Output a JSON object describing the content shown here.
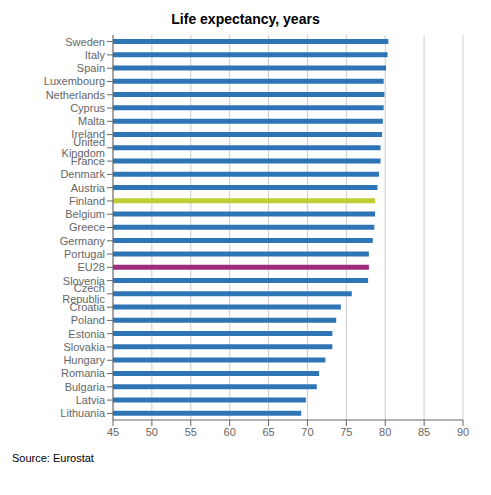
{
  "chart_data": {
    "type": "bar",
    "title": "Life expectancy, years",
    "annotations": [
      "Source: Eurostat"
    ],
    "orientation": "horizontal",
    "categories": [
      "Sweden",
      "Italy",
      "Spain",
      "Luxembourg",
      "Netherlands",
      "Cyprus",
      "Malta",
      "Ireland",
      "United Kingdom",
      "France",
      "Denmark",
      "Austria",
      "Finland",
      "Belgium",
      "Greece",
      "Germany",
      "Portugal",
      "EU28",
      "Slovenia",
      "Czech Republic",
      "Croatia",
      "Poland",
      "Estonia",
      "Slovakia",
      "Hungary",
      "Romania",
      "Bulgaria",
      "Latvia",
      "Lithuania"
    ],
    "values": [
      80.4,
      80.3,
      80.1,
      79.8,
      79.9,
      79.8,
      79.7,
      79.6,
      79.4,
      79.4,
      79.2,
      79.0,
      78.7,
      78.7,
      78.6,
      78.4,
      77.9,
      77.9,
      77.8,
      75.7,
      74.3,
      73.7,
      73.2,
      73.2,
      72.3,
      71.5,
      71.2,
      69.8,
      69.2
    ],
    "colors": [
      "#2E75B6",
      "#2E75B6",
      "#2E75B6",
      "#2E75B6",
      "#2E75B6",
      "#2E75B6",
      "#2E75B6",
      "#2E75B6",
      "#2E75B6",
      "#2E75B6",
      "#2E75B6",
      "#2E75B6",
      "#BFCE34",
      "#2E75B6",
      "#2E75B6",
      "#2E75B6",
      "#2E75B6",
      "#9E2B7E",
      "#2E75B6",
      "#2E75B6",
      "#2E75B6",
      "#2E75B6",
      "#2E75B6",
      "#2E75B6",
      "#2E75B6",
      "#2E75B6",
      "#2E75B6",
      "#2E75B6",
      "#2E75B6"
    ],
    "xlim": [
      45,
      90
    ],
    "xticks": [
      45,
      50,
      55,
      60,
      65,
      70,
      75,
      80,
      85,
      90
    ],
    "grid": true
  }
}
